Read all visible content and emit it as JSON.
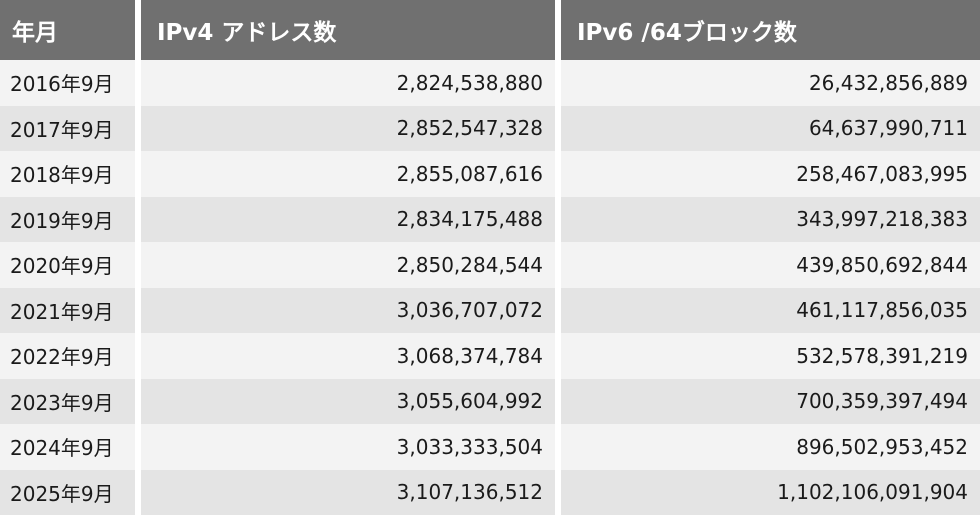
{
  "table": {
    "headers": {
      "date": "年月",
      "ipv4": "IPv4 アドレス数",
      "ipv6": "IPv6 /64ブロック数"
    },
    "rows": [
      {
        "date": "2016年9月",
        "ipv4": "2,824,538,880",
        "ipv6": "26,432,856,889"
      },
      {
        "date": "2017年9月",
        "ipv4": "2,852,547,328",
        "ipv6": "64,637,990,711"
      },
      {
        "date": "2018年9月",
        "ipv4": "2,855,087,616",
        "ipv6": "258,467,083,995"
      },
      {
        "date": "2019年9月",
        "ipv4": "2,834,175,488",
        "ipv6": "343,997,218,383"
      },
      {
        "date": "2020年9月",
        "ipv4": "2,850,284,544",
        "ipv6": "439,850,692,844"
      },
      {
        "date": "2021年9月",
        "ipv4": "3,036,707,072",
        "ipv6": "461,117,856,035"
      },
      {
        "date": "2022年9月",
        "ipv4": "3,068,374,784",
        "ipv6": "532,578,391,219"
      },
      {
        "date": "2023年9月",
        "ipv4": "3,055,604,992",
        "ipv6": "700,359,397,494"
      },
      {
        "date": "2024年9月",
        "ipv4": "3,033,333,504",
        "ipv6": "896,502,953,452"
      },
      {
        "date": "2025年9月",
        "ipv4": "3,107,136,512",
        "ipv6": "1,102,106,091,904"
      }
    ]
  },
  "colors": {
    "header_bg": "#707070",
    "header_text": "#ffffff",
    "row_light": "#f3f3f3",
    "row_dark": "#e4e4e4",
    "body_text": "#1a1a1a"
  }
}
